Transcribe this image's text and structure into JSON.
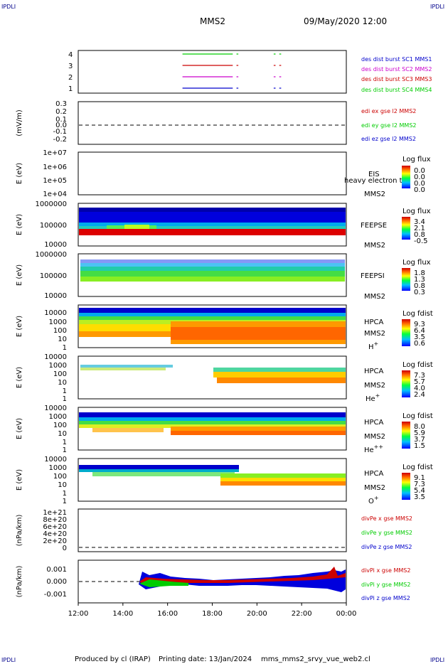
{
  "header": {
    "corner_label": "IPDLI",
    "spacecraft": "MMS2",
    "datetime": "09/May/2020 12:00"
  },
  "footer": {
    "produced_by": "Produced by cl (IRAP)",
    "printing_date": "Printing date: 13/Jan/2024",
    "filename": "mms_mms2_srvy_vue_web2.cl"
  },
  "colors": {
    "dark_blue": "#0000cc",
    "magenta": "#cc00cc",
    "red": "#cc0000",
    "green": "#00cc00"
  },
  "chart_data": {
    "type": "stacked time-series panels",
    "x_axis": {
      "range": [
        "12:00",
        "00:00"
      ],
      "tick_labels": [
        "12:00",
        "14:00",
        "16:00",
        "18:00",
        "20:00",
        "22:00",
        "00:00"
      ]
    },
    "panels": [
      {
        "id": "burst",
        "type": "line",
        "ylabel": "",
        "yticks": [
          "4",
          "3",
          "2",
          "1"
        ],
        "series": [
          {
            "name": "des dist burst SC1 MMS1",
            "color": "#0000cc",
            "level": 1,
            "segments": [
              [
                "16:40",
                "18:55"
              ],
              [
                "19:05",
                "19:10"
              ],
              [
                "20:45",
                "20:50"
              ],
              [
                "21:00",
                "21:05"
              ]
            ]
          },
          {
            "name": "des dist burst SC2 MMS2",
            "color": "#cc00cc",
            "level": 2,
            "segments": [
              [
                "16:40",
                "18:55"
              ],
              [
                "19:05",
                "19:10"
              ],
              [
                "20:45",
                "20:50"
              ],
              [
                "21:00",
                "21:05"
              ]
            ]
          },
          {
            "name": "des dist burst SC3 MMS3",
            "color": "#cc0000",
            "level": 3,
            "segments": [
              [
                "16:40",
                "18:55"
              ],
              [
                "19:05",
                "19:10"
              ],
              [
                "20:45",
                "20:50"
              ],
              [
                "21:00",
                "21:05"
              ]
            ]
          },
          {
            "name": "des dist burst SC4 MMS4",
            "color": "#00cc00",
            "level": 4,
            "segments": [
              [
                "16:40",
                "18:55"
              ],
              [
                "19:05",
                "19:10"
              ],
              [
                "20:45",
                "20:50"
              ],
              [
                "21:00",
                "21:05"
              ]
            ]
          }
        ]
      },
      {
        "id": "edi",
        "type": "line",
        "ylabel": "(mV/m)",
        "yticks": [
          "0.3",
          "0.2",
          "0.1",
          "0.0",
          "-0.1",
          "-0.2"
        ],
        "legend": [
          {
            "name": "edi ex gse l2 MMS2",
            "color": "#cc0000"
          },
          {
            "name": "edi ey gse l2 MMS2",
            "color": "#00cc00"
          },
          {
            "name": "edi ez gse l2 MMS2",
            "color": "#0000cc"
          }
        ]
      },
      {
        "id": "eis",
        "type": "heatmap",
        "ylabel": "E (eV)",
        "yticks": [
          "1e+07",
          "1e+06",
          "1e+05",
          "1e+04"
        ],
        "labels": [
          "EIS",
          "heavy electron to",
          "MMS2"
        ],
        "colorbar_title": "Log flux",
        "colorbar_values": [
          "0.0",
          "0.0",
          "0.0",
          "0.0"
        ]
      },
      {
        "id": "feepse",
        "type": "heatmap",
        "ylabel": "E (eV)",
        "yticks": [
          "1000000",
          "100000",
          "10000"
        ],
        "labels": [
          "FEEPSE",
          "MMS2"
        ],
        "colorbar_title": "Log flux",
        "colorbar_values": [
          "3.4",
          "2.1",
          "0.8",
          "-0.5"
        ]
      },
      {
        "id": "feepsi",
        "type": "heatmap",
        "ylabel": "E (eV)",
        "yticks": [
          "1000000",
          "100000",
          "10000"
        ],
        "labels": [
          "FEEPSI",
          "MMS2"
        ],
        "colorbar_title": "Log flux",
        "colorbar_values": [
          "1.8",
          "1.3",
          "0.8",
          "0.3"
        ]
      },
      {
        "id": "hpca_h",
        "type": "heatmap",
        "ylabel": "E (eV)",
        "yticks": [
          "10000",
          "1000",
          "100",
          "10",
          "1"
        ],
        "labels": [
          "HPCA",
          "MMS2",
          "H",
          "+"
        ],
        "colorbar_title": "Log fdist",
        "colorbar_values": [
          "9.3",
          "6.4",
          "3.5",
          "0.6"
        ]
      },
      {
        "id": "hpca_he",
        "type": "heatmap",
        "ylabel": "E (eV)",
        "yticks": [
          "10000",
          "1000",
          "100",
          "10",
          "1"
        ],
        "labels": [
          "HPCA",
          "MMS2",
          "He",
          "+"
        ],
        "colorbar_title": "Log fdist",
        "colorbar_values": [
          "7.3",
          "5.7",
          "4.0",
          "2.4"
        ]
      },
      {
        "id": "hpca_hepp",
        "type": "heatmap",
        "ylabel": "E (eV)",
        "yticks": [
          "10000",
          "1000",
          "100",
          "10",
          "1"
        ],
        "labels": [
          "HPCA",
          "MMS2",
          "He",
          "++"
        ],
        "colorbar_title": "Log fdist",
        "colorbar_values": [
          "8.0",
          "5.9",
          "3.7",
          "1.5"
        ]
      },
      {
        "id": "hpca_o",
        "type": "heatmap",
        "ylabel": "E (eV)",
        "yticks": [
          "10000",
          "1000",
          "100",
          "10",
          "1"
        ],
        "labels": [
          "HPCA",
          "MMS2",
          "O",
          "+"
        ],
        "colorbar_title": "Log fdist",
        "colorbar_values": [
          "9.1",
          "7.3",
          "5.4",
          "3.5"
        ]
      },
      {
        "id": "divpe",
        "type": "line",
        "ylabel": "(nPa/km)",
        "yticks": [
          "1e+21",
          "8e+20",
          "6e+20",
          "4e+20",
          "2e+20",
          "0"
        ],
        "legend": [
          {
            "name": "divPe x gse MMS2",
            "color": "#cc0000"
          },
          {
            "name": "divPe y gse MMS2",
            "color": "#00cc00"
          },
          {
            "name": "divPe z gse MMS2",
            "color": "#0000cc"
          }
        ]
      },
      {
        "id": "divpi",
        "type": "line",
        "ylabel": "(nPa/km)",
        "yticks": [
          "0.001",
          "0.000",
          "-0.001"
        ],
        "data_start": "14:45",
        "legend": [
          {
            "name": "divPi x gse MMS2",
            "color": "#cc0000"
          },
          {
            "name": "divPi y gse MMS2",
            "color": "#00cc00"
          },
          {
            "name": "divPi z gse MMS2",
            "color": "#0000cc"
          }
        ]
      }
    ]
  }
}
